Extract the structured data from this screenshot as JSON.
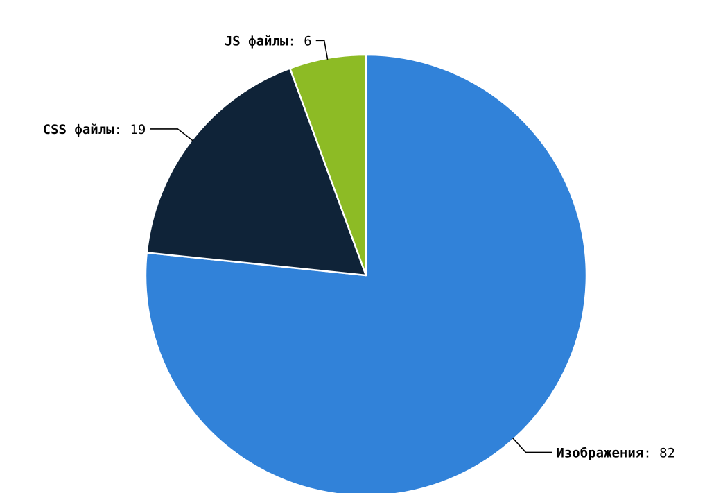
{
  "chart_data": {
    "type": "pie",
    "title": "",
    "start_angle_deg": 0,
    "direction": "clockwise",
    "label_separator": ":",
    "slices": [
      {
        "label": "Изображения",
        "value": 82,
        "color": "#3182d9"
      },
      {
        "label": "CSS файлы",
        "value": 19,
        "color": "#0f2338"
      },
      {
        "label": "JS файлы",
        "value": 6,
        "color": "#8dbb25"
      }
    ],
    "legend": "none",
    "data_labels": "outside-with-connectors"
  }
}
